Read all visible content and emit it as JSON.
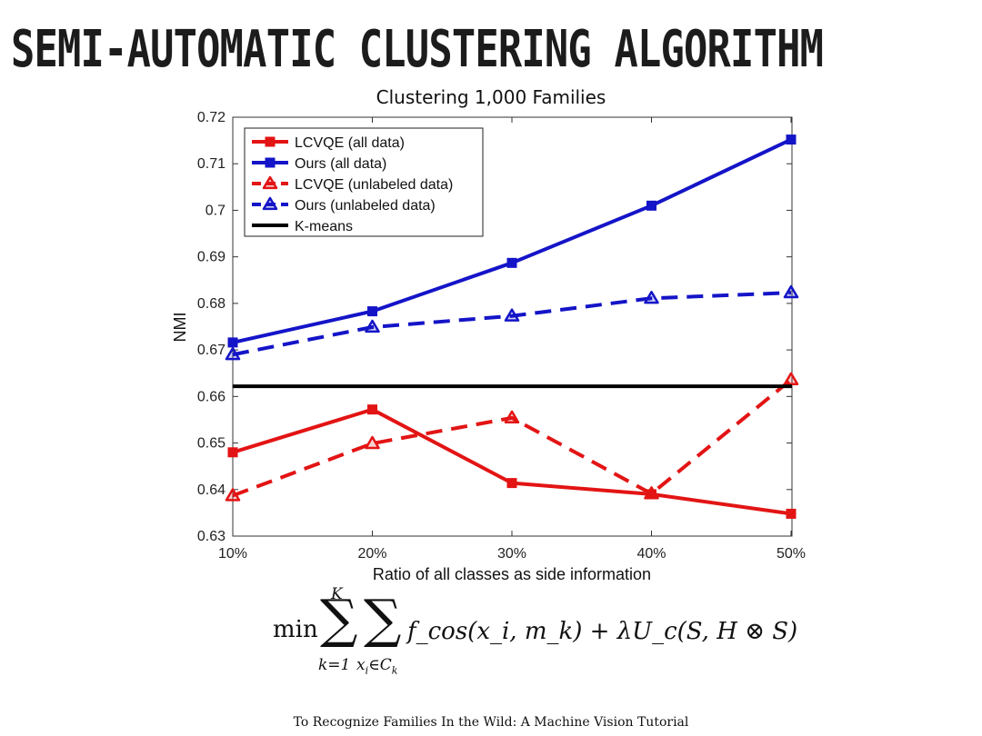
{
  "slide": {
    "title": "SEMI-AUTOMATIC CLUSTERING ALGORITHM",
    "footer": "To Recognize Families In the Wild: A Machine Vision Tutorial"
  },
  "formula": {
    "min": "min",
    "sum_upper": "K",
    "sum1_lower": "k=1",
    "sum2_lower_var": "x",
    "sum2_lower_sub": "i",
    "sum2_lower_rest": "∈C",
    "sum2_lower_sub2": "k",
    "body": "f_cos(x_i, m_k) + λU_c(S, H ⊗ S)"
  },
  "chart_data": {
    "type": "line",
    "title": "Clustering 1,000 Families",
    "xlabel": "Ratio of all classes as side information",
    "ylabel": "NMI",
    "categories": [
      "10%",
      "20%",
      "30%",
      "40%",
      "50%"
    ],
    "ylim": [
      0.63,
      0.72
    ],
    "yticks": [
      0.63,
      0.64,
      0.65,
      0.66,
      0.67,
      0.68,
      0.69,
      0.7,
      0.71,
      0.72
    ],
    "ytick_labels": [
      "0.63",
      "0.64",
      "0.65",
      "0.66",
      "0.67",
      "0.68",
      "0.69",
      "0.7",
      "0.71",
      "0.72"
    ],
    "legend_position": "top-left",
    "series": [
      {
        "name": "LCVQE  (all data)",
        "color": "#e31414",
        "dash": "solid",
        "marker": "square",
        "values": [
          0.648,
          0.6572,
          0.6414,
          0.639,
          0.6348
        ]
      },
      {
        "name": "Ours  (all data)",
        "color": "#1414c8",
        "dash": "solid",
        "marker": "square",
        "values": [
          0.6716,
          0.6783,
          0.6887,
          0.701,
          0.7152
        ]
      },
      {
        "name": "LCVQE  (unlabeled data)",
        "color": "#e31414",
        "dash": "dashed",
        "marker": "triangle",
        "values": [
          0.6387,
          0.6499,
          0.6554,
          0.6391,
          0.6636
        ]
      },
      {
        "name": "Ours (unlabeled data)",
        "color": "#1414c8",
        "dash": "dashed",
        "marker": "triangle",
        "values": [
          0.669,
          0.6749,
          0.6773,
          0.6811,
          0.6823
        ]
      },
      {
        "name": "K-means",
        "color": "#000000",
        "dash": "solid",
        "marker": "none",
        "values": [
          0.6622,
          0.6622,
          0.6622,
          0.6622,
          0.6622
        ]
      }
    ]
  }
}
